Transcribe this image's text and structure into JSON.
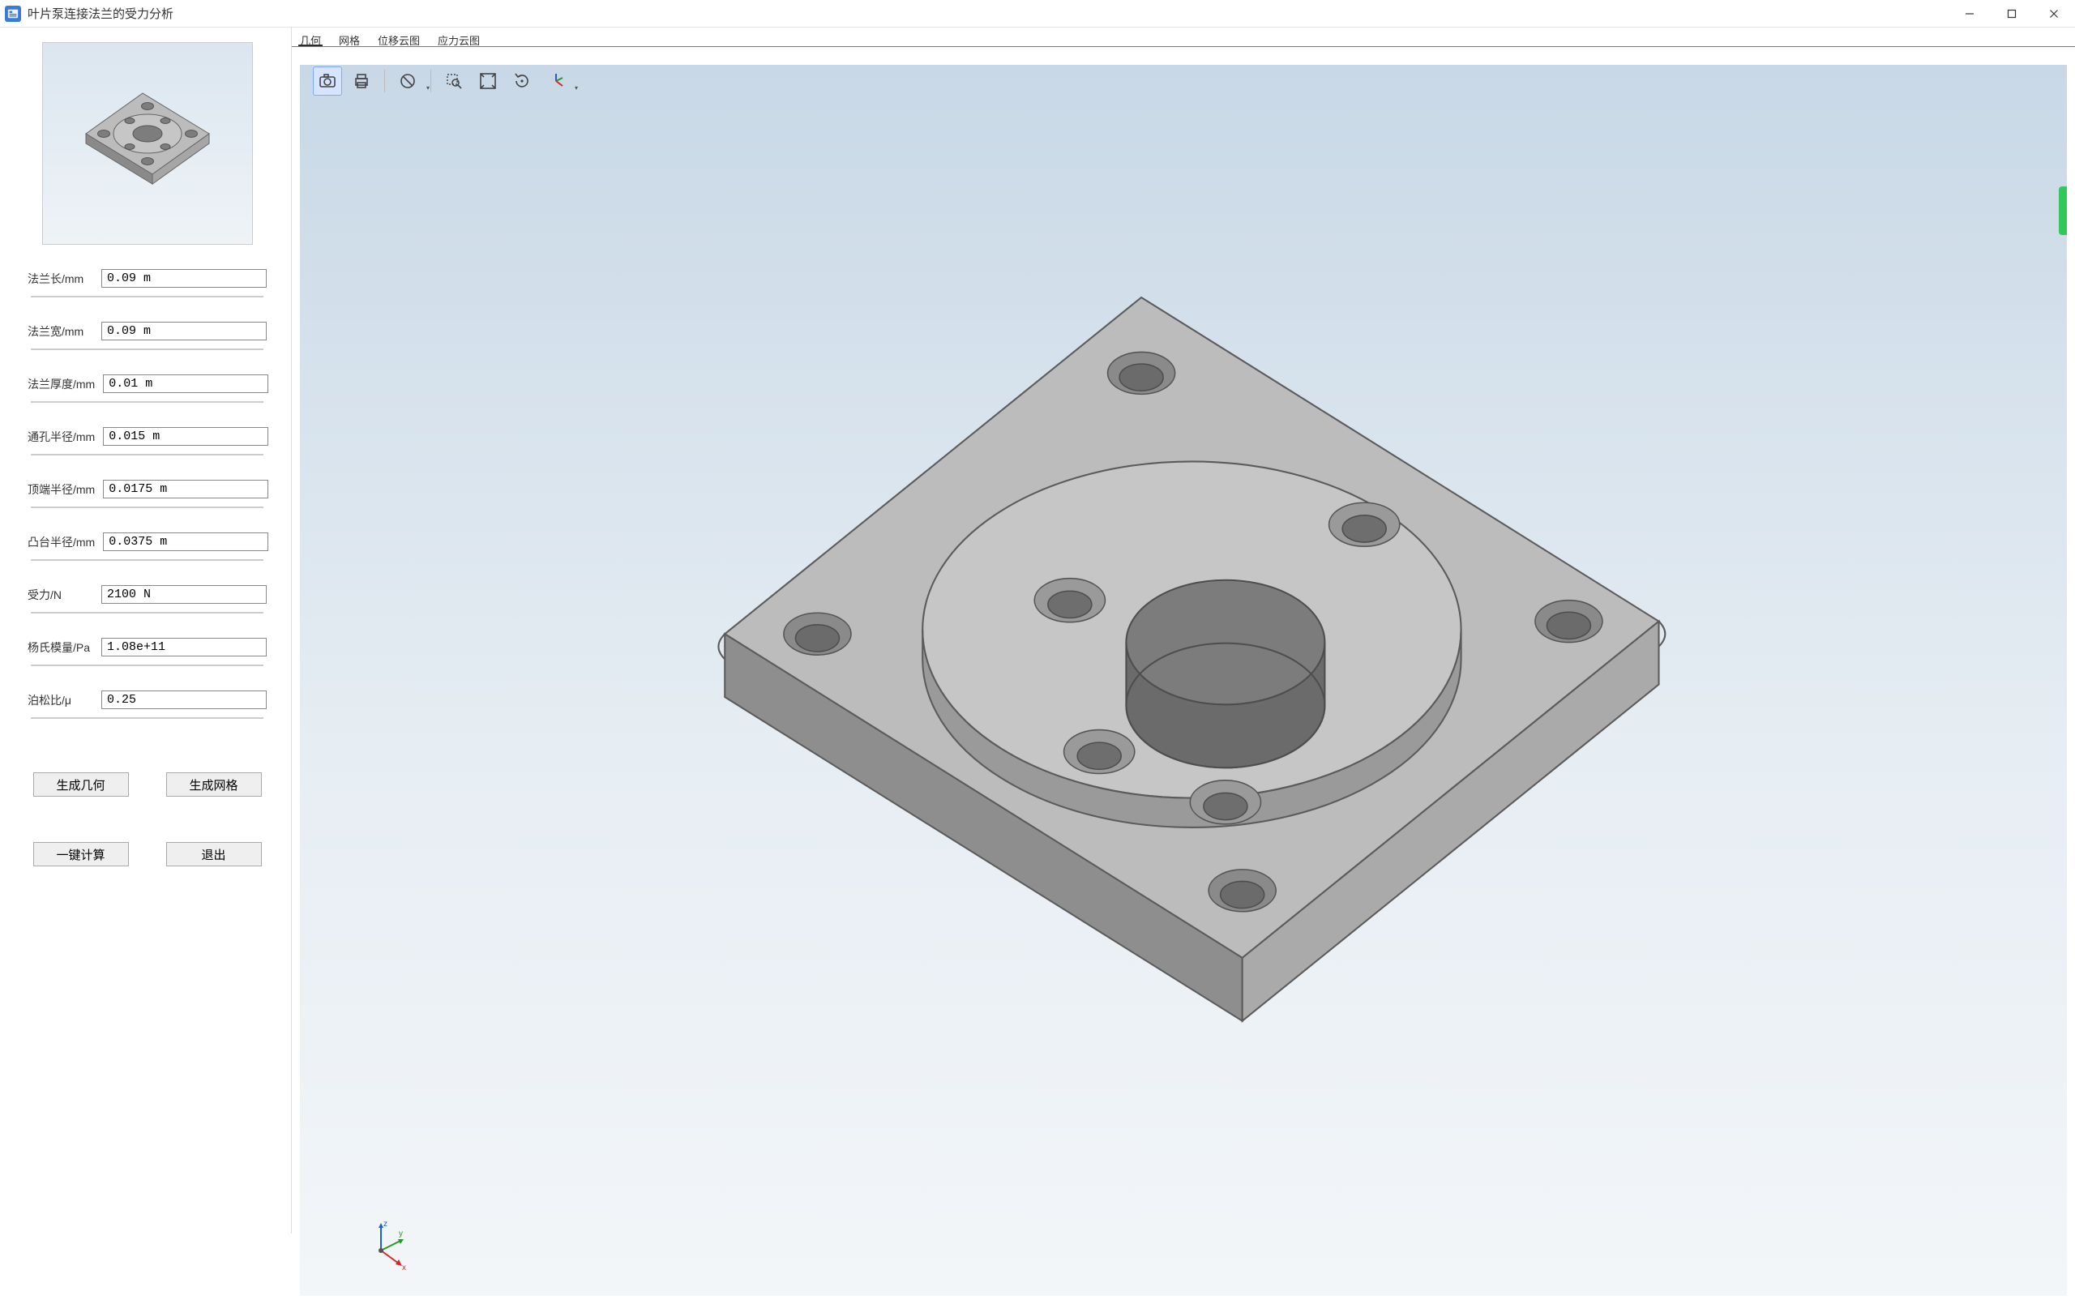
{
  "window": {
    "title": "叶片泵连接法兰的受力分析",
    "icon_color": "#3a7bd5"
  },
  "sidebar": {
    "thumbnail": {
      "bg_top": "#dbe6f0",
      "bg_bottom": "#eef3f7"
    },
    "params": [
      {
        "label": "法兰长/mm",
        "value": "0.09 m"
      },
      {
        "label": "法兰宽/mm",
        "value": "0.09 m"
      },
      {
        "label": "法兰厚度/mm",
        "value": "0.01 m"
      },
      {
        "label": "通孔半径/mm",
        "value": "0.015 m"
      },
      {
        "label": "顶端半径/mm",
        "value": "0.0175 m"
      },
      {
        "label": "凸台半径/mm",
        "value": "0.0375 m"
      },
      {
        "label": "受力/N",
        "value": "2100 N"
      },
      {
        "label": "杨氏模量/Pa",
        "value": "1.08e+11"
      },
      {
        "label": "泊松比/μ",
        "value": "0.25"
      }
    ],
    "buttons": {
      "gen_geom": "生成几何",
      "gen_mesh": "生成网格",
      "one_click": "一键计算",
      "exit": "退出"
    }
  },
  "tabs": [
    {
      "label": "几何",
      "active": true
    },
    {
      "label": "网格",
      "active": false
    },
    {
      "label": "位移云图",
      "active": false
    },
    {
      "label": "应力云图",
      "active": false
    }
  ],
  "toolbar": {
    "items": [
      {
        "name": "camera-icon",
        "active": true
      },
      {
        "name": "print-icon",
        "active": false
      },
      {
        "name": "sep"
      },
      {
        "name": "forbid-icon",
        "active": false,
        "dropdown": true
      },
      {
        "name": "sep"
      },
      {
        "name": "zoom-select-icon",
        "active": false
      },
      {
        "name": "fit-icon",
        "active": false
      },
      {
        "name": "rotate-icon",
        "active": false
      },
      {
        "name": "axes-icon",
        "active": false,
        "dropdown": true
      }
    ]
  },
  "viewport": {
    "bg_top": "#c8d8e6",
    "bg_mid": "#e6edf3",
    "bg_bottom": "#f3f6f9",
    "model": {
      "fill": "#b4b4b4",
      "fill_light": "#c6c6c6",
      "fill_dark": "#8f8f8f",
      "edge": "#595959",
      "hole_fill": "#7e7e7e"
    },
    "axes": {
      "x": {
        "color": "#d92626",
        "label": "x"
      },
      "y": {
        "color": "#1f9e1f",
        "label": "y"
      },
      "z": {
        "color": "#1f5fd9",
        "label": "z"
      }
    },
    "side_handle_color": "#34c759"
  }
}
